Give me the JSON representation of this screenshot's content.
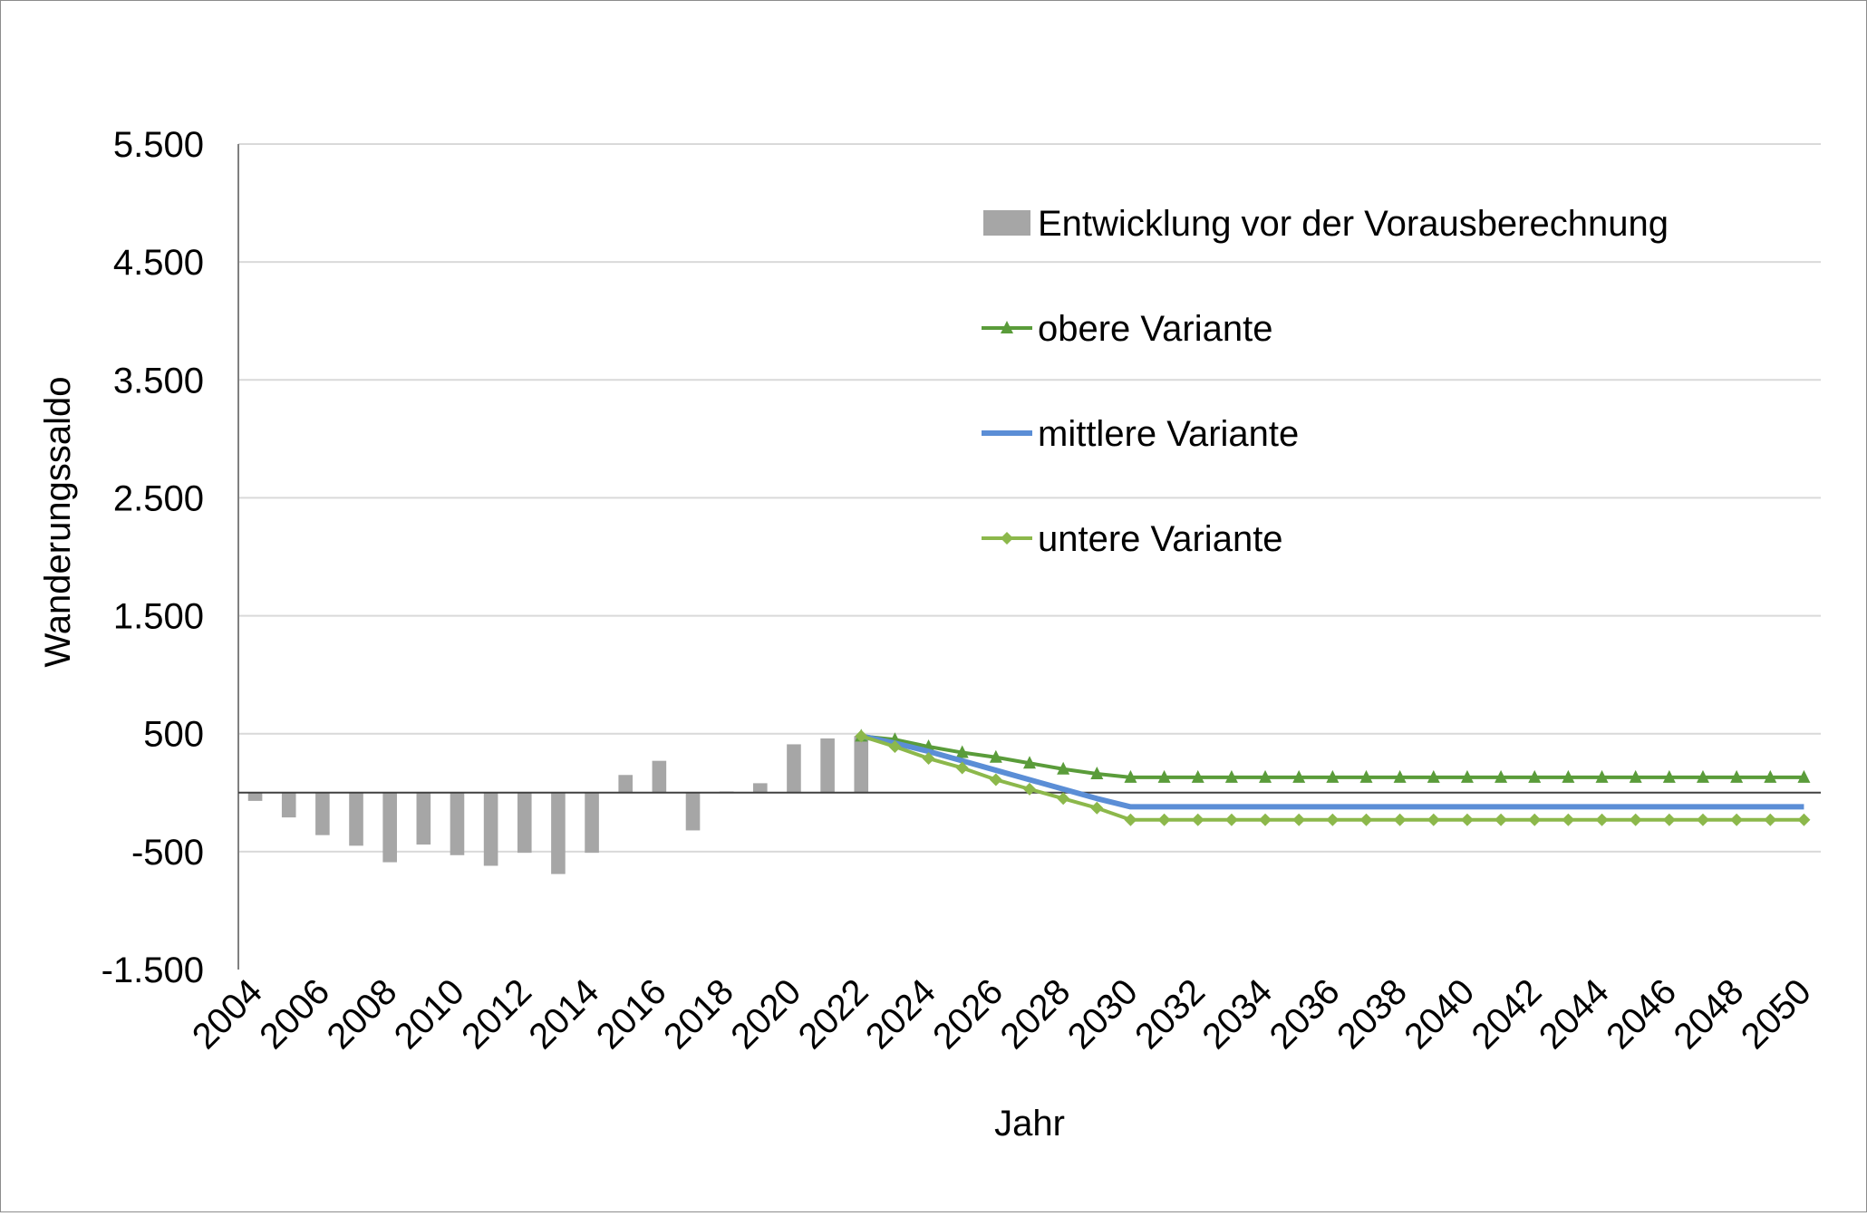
{
  "chart_data": {
    "type": "bar",
    "xlabel": "Jahr",
    "ylabel": "Wanderungssaldo",
    "ylim": [
      -1500,
      5500
    ],
    "ytick_values": [
      -1500,
      -500,
      500,
      1500,
      2500,
      3500,
      4500,
      5500
    ],
    "ytick_labels": [
      "-1.500",
      "-500",
      "500",
      "1.500",
      "2.500",
      "3.500",
      "4.500",
      "5.500"
    ],
    "xlim": [
      2004,
      2050
    ],
    "xtick_labels": [
      "2004",
      "2006",
      "2008",
      "2010",
      "2012",
      "2014",
      "2016",
      "2018",
      "2020",
      "2022",
      "2024",
      "2026",
      "2028",
      "2030",
      "2032",
      "2034",
      "2036",
      "2038",
      "2040",
      "2042",
      "2044",
      "2046",
      "2048",
      "2050"
    ],
    "grid": true,
    "legend_position": "top-right",
    "colors": {
      "bars": "#a6a6a6",
      "obere": "#5a9c3a",
      "mittlere": "#5b8ed6",
      "untere": "#8cb84b",
      "grid": "#d9d9d9",
      "axis": "#808080"
    },
    "bar_series": {
      "name": "Entwicklung vor der Vorausberechnung",
      "x": [
        2004,
        2005,
        2006,
        2007,
        2008,
        2009,
        2010,
        2011,
        2012,
        2013,
        2014,
        2015,
        2016,
        2017,
        2018,
        2019,
        2020,
        2021,
        2022
      ],
      "values": [
        -70,
        -210,
        -360,
        -450,
        -590,
        -440,
        -530,
        -620,
        -510,
        -690,
        -510,
        150,
        270,
        -320,
        10,
        80,
        410,
        460,
        480
      ]
    },
    "series": [
      {
        "name": "obere Variante",
        "marker": "triangle",
        "x": [
          2022,
          2023,
          2024,
          2025,
          2026,
          2027,
          2028,
          2029,
          2030,
          2031,
          2032,
          2033,
          2034,
          2035,
          2036,
          2037,
          2038,
          2039,
          2040,
          2041,
          2042,
          2043,
          2044,
          2045,
          2046,
          2047,
          2048,
          2049,
          2050
        ],
        "values": [
          480,
          450,
          390,
          340,
          300,
          250,
          200,
          160,
          130,
          130,
          130,
          130,
          130,
          130,
          130,
          130,
          130,
          130,
          130,
          130,
          130,
          130,
          130,
          130,
          130,
          130,
          130,
          130,
          130
        ]
      },
      {
        "name": "mittlere Variante",
        "marker": "none",
        "x": [
          2022,
          2023,
          2024,
          2025,
          2026,
          2027,
          2028,
          2029,
          2030,
          2031,
          2032,
          2033,
          2034,
          2035,
          2036,
          2037,
          2038,
          2039,
          2040,
          2041,
          2042,
          2043,
          2044,
          2045,
          2046,
          2047,
          2048,
          2049,
          2050
        ],
        "values": [
          480,
          420,
          350,
          270,
          190,
          110,
          30,
          -50,
          -120,
          -120,
          -120,
          -120,
          -120,
          -120,
          -120,
          -120,
          -120,
          -120,
          -120,
          -120,
          -120,
          -120,
          -120,
          -120,
          -120,
          -120,
          -120,
          -120,
          -120
        ]
      },
      {
        "name": "untere Variante",
        "marker": "diamond",
        "x": [
          2022,
          2023,
          2024,
          2025,
          2026,
          2027,
          2028,
          2029,
          2030,
          2031,
          2032,
          2033,
          2034,
          2035,
          2036,
          2037,
          2038,
          2039,
          2040,
          2041,
          2042,
          2043,
          2044,
          2045,
          2046,
          2047,
          2048,
          2049,
          2050
        ],
        "values": [
          480,
          390,
          290,
          210,
          110,
          30,
          -50,
          -130,
          -230,
          -230,
          -230,
          -230,
          -230,
          -230,
          -230,
          -230,
          -230,
          -230,
          -230,
          -230,
          -230,
          -230,
          -230,
          -230,
          -230,
          -230,
          -230,
          -230,
          -230
        ]
      }
    ]
  }
}
